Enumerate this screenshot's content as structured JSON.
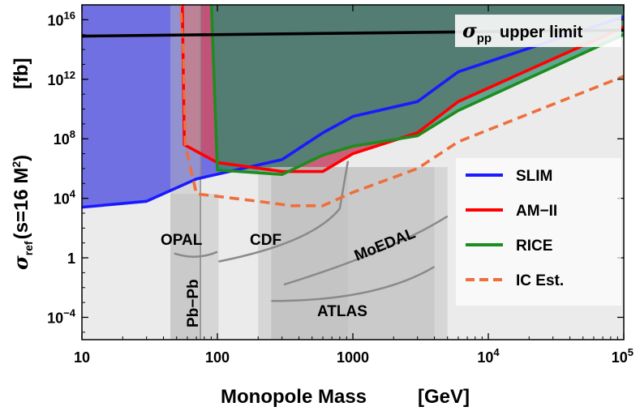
{
  "chart_data": {
    "type": "area",
    "title": "",
    "xlabel": "Monopole Mass",
    "xunit": "[GeV]",
    "ylabel_prefix": "σ",
    "ylabel_sub": "ref",
    "ylabel_paren": "(s=16 M",
    "ylabel_sup": "2",
    "ylabel_close": ")",
    "yunit": "[fb]",
    "xscale": "log",
    "yscale": "log",
    "xlim": [
      10,
      100000
    ],
    "ylim_log10": [
      -5.5,
      17
    ],
    "x_ticks": [
      {
        "value": 10,
        "label": "10"
      },
      {
        "value": 100,
        "label": "100"
      },
      {
        "value": 1000,
        "label": "1000"
      },
      {
        "value": 10000,
        "label": "10",
        "sup": "4"
      },
      {
        "value": 100000,
        "label": "10",
        "sup": "5"
      }
    ],
    "y_ticks": [
      {
        "log10": 16,
        "label": "10",
        "sup": "16"
      },
      {
        "log10": 12,
        "label": "10",
        "sup": "12"
      },
      {
        "log10": 8,
        "label": "10",
        "sup": "8"
      },
      {
        "log10": 4,
        "label": "10",
        "sup": "4"
      },
      {
        "log10": 0,
        "label": "1"
      },
      {
        "log10": -4,
        "label": "10",
        "sup": "−4"
      }
    ],
    "sigma_pp_label": {
      "sym": "σ",
      "sub": "pp",
      "text": "upper limit"
    },
    "sigma_pp_line": {
      "x": [
        10,
        100000
      ],
      "log10_y": [
        14.9,
        15.3
      ],
      "color": "#000000"
    },
    "series": [
      {
        "name": "SLIM",
        "color": "#1a1aff",
        "fill": "#5b5be0",
        "style": "solid",
        "x": [
          10,
          30,
          70,
          300,
          600,
          1000,
          3000,
          6000,
          100000
        ],
        "log10_y": [
          3.4,
          3.8,
          5.3,
          6.6,
          8.4,
          9.5,
          10.5,
          12.5,
          16.2
        ]
      },
      {
        "name": "AM−II",
        "color": "#ff0000",
        "fill": "#c8506e",
        "style": "solid",
        "x": [
          55,
          57,
          100,
          300,
          600,
          1000,
          3000,
          6000,
          100000
        ],
        "log10_y": [
          17.5,
          7.6,
          6.4,
          5.8,
          5.8,
          7.0,
          8.4,
          10.5,
          15.5
        ]
      },
      {
        "name": "RICE",
        "color": "#1e8c1e",
        "fill": "#2a8c70",
        "style": "solid",
        "x": [
          90,
          100,
          300,
          600,
          1000,
          3000,
          6000,
          100000
        ],
        "log10_y": [
          17.5,
          5.9,
          5.6,
          6.9,
          7.5,
          8.2,
          9.9,
          15.0
        ]
      },
      {
        "name": "IC Est.",
        "color": "#ef6f3c",
        "style": "dashed",
        "x": [
          53,
          56,
          58,
          70,
          200,
          350,
          600,
          1000,
          3000,
          6000,
          100000
        ],
        "log10_y": [
          17.5,
          14,
          7.6,
          4.3,
          3.8,
          3.5,
          3.5,
          4.4,
          6.0,
          7.8,
          12.2
        ]
      }
    ],
    "legend": [
      "SLIM",
      "AM−II",
      "RICE",
      "IC Est."
    ],
    "legend_position": "right",
    "excluded_regions": [
      {
        "name": "OPAL",
        "x_range": [
          45,
          102
        ],
        "log10_y_top": 4.3
      },
      {
        "name": "Pb−Pb",
        "x_range": [
          45,
          75
        ]
      },
      {
        "name": "CDF",
        "x_range": [
          200,
          920
        ],
        "log10_y_top": 6.1
      },
      {
        "name": "MoEDAL",
        "x_range": [
          250,
          5000
        ],
        "log10_y_top": 6.1
      },
      {
        "name": "ATLAS",
        "x_range": [
          250,
          4000
        ],
        "log10_y_top": 6.1
      }
    ],
    "grid": false
  }
}
